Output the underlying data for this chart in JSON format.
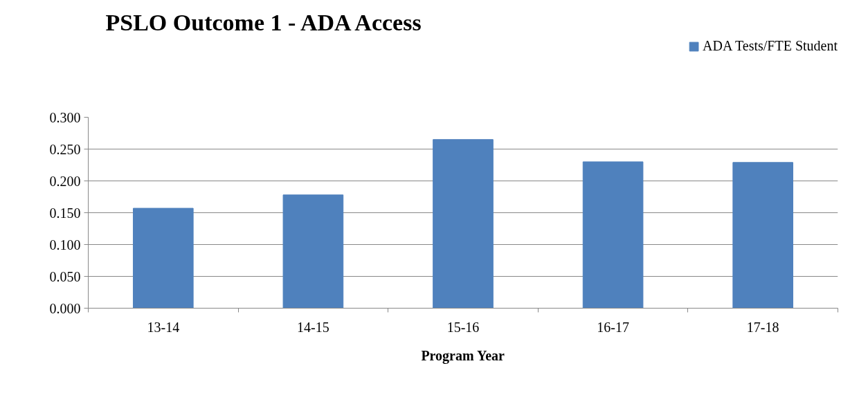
{
  "chart_data": {
    "type": "bar",
    "title": "PSLO Outcome 1 - ADA Access",
    "xlabel": "Program Year",
    "categories": [
      "13-14",
      "14-15",
      "15-16",
      "16-17",
      "17-18"
    ],
    "series": [
      {
        "name": "ADA Tests/FTE Student",
        "color": "#4f81bd",
        "values": [
          0.157,
          0.178,
          0.265,
          0.23,
          0.229
        ]
      }
    ],
    "ylim": [
      0,
      0.3
    ],
    "yticks": [
      {
        "value": 0,
        "label": "0.000"
      },
      {
        "value": 0.05,
        "label": "0.050"
      },
      {
        "value": 0.1,
        "label": "0.100"
      },
      {
        "value": 0.15,
        "label": "0.150"
      },
      {
        "value": 0.2,
        "label": "0.200"
      },
      {
        "value": 0.25,
        "label": "0.250"
      },
      {
        "value": 0.3,
        "label": "0.300"
      }
    ],
    "grid": "y",
    "legend": "top right"
  }
}
